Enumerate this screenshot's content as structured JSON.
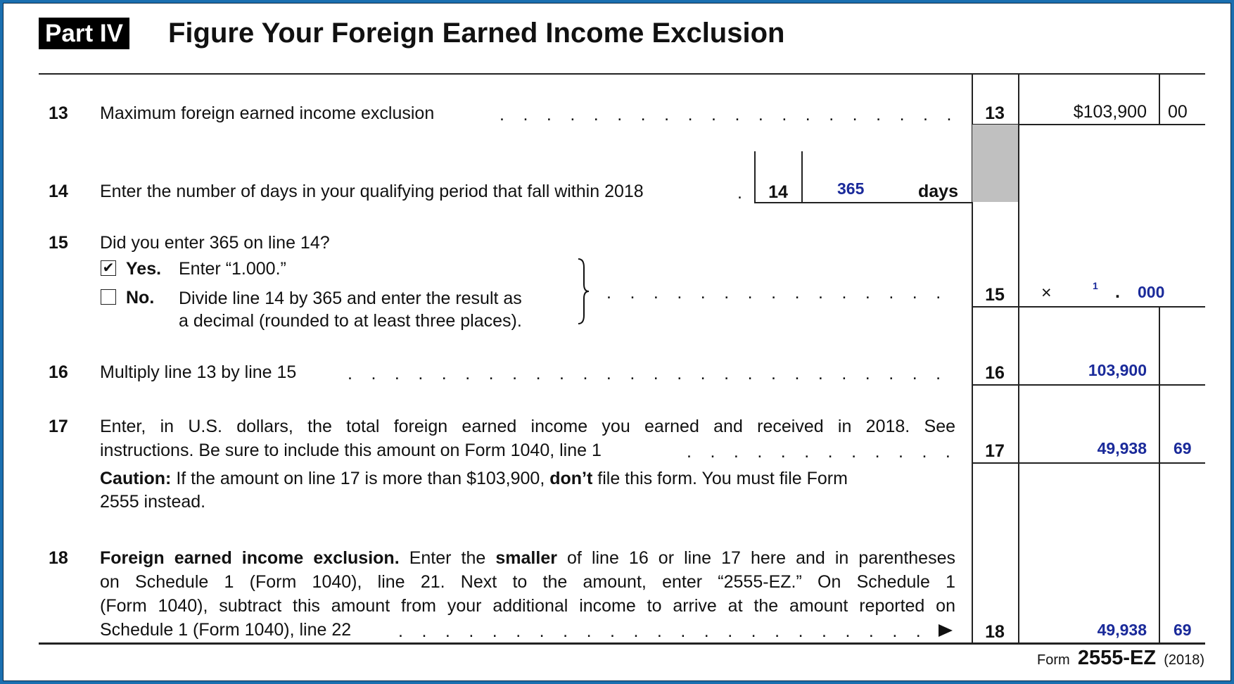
{
  "header": {
    "part_label": "Part IV",
    "title": "Figure Your Foreign Earned Income Exclusion"
  },
  "lines": {
    "l13": {
      "num": "13",
      "text": "Maximum foreign earned income exclusion",
      "box": "13",
      "amount": "$103,900",
      "cents": "00"
    },
    "l14": {
      "num": "14",
      "text": "Enter the number of days in your qualifying period that fall within 2018",
      "box": "14",
      "value": "365",
      "unit": "days"
    },
    "l15": {
      "num": "15",
      "question": "Did you enter 365 on line 14?",
      "yes_checked": true,
      "yes_label": "Yes.",
      "yes_text": "Enter “1.000.”",
      "no_checked": false,
      "no_label": "No.",
      "no_text_1": "Divide line 14 by 365 and enter the result as",
      "no_text_2": "a decimal (rounded to at least three places).",
      "box": "15",
      "times": "×",
      "value_int": "1",
      "decimal_point": ".",
      "value_dec": "000"
    },
    "l16": {
      "num": "16",
      "text": "Multiply line 13 by line 15",
      "box": "16",
      "amount": "103,900"
    },
    "l17": {
      "num": "17",
      "text_1": "Enter, in U.S. dollars, the total foreign earned income you earned and received in 2018. See",
      "text_2": "instructions. Be sure to include this amount on Form 1040, line 1",
      "caution_label": "Caution:",
      "caution_a": " If the amount on line 17 is more than $103,900, ",
      "caution_bold": "don’t",
      "caution_b": " file this form. You must file Form",
      "caution_2": "2555 instead.",
      "box": "17",
      "amount": "49,938",
      "cents": "69"
    },
    "l18": {
      "num": "18",
      "bold_a": "Foreign earned income exclusion.",
      "text_a": " Enter the ",
      "bold_b": "smaller",
      "text_b": " of line 16 or line 17 here and in parentheses",
      "text_2": "on Schedule 1 (Form 1040), line 21. Next to the amount, enter “2555-EZ.” On Schedule 1",
      "text_3": "(Form 1040), subtract this amount from your additional income to arrive at the amount reported on",
      "text_4": "Schedule 1 (Form 1040), line 22",
      "box": "18",
      "amount": "49,938",
      "cents": "69"
    }
  },
  "footer": {
    "form_word": "Form",
    "form_number": "2555-EZ",
    "year": "(2018)"
  },
  "colors": {
    "entry_blue": "#1a2a9a",
    "border_blue": "#1a6fb0",
    "shade_gray": "#c0c0c0"
  }
}
